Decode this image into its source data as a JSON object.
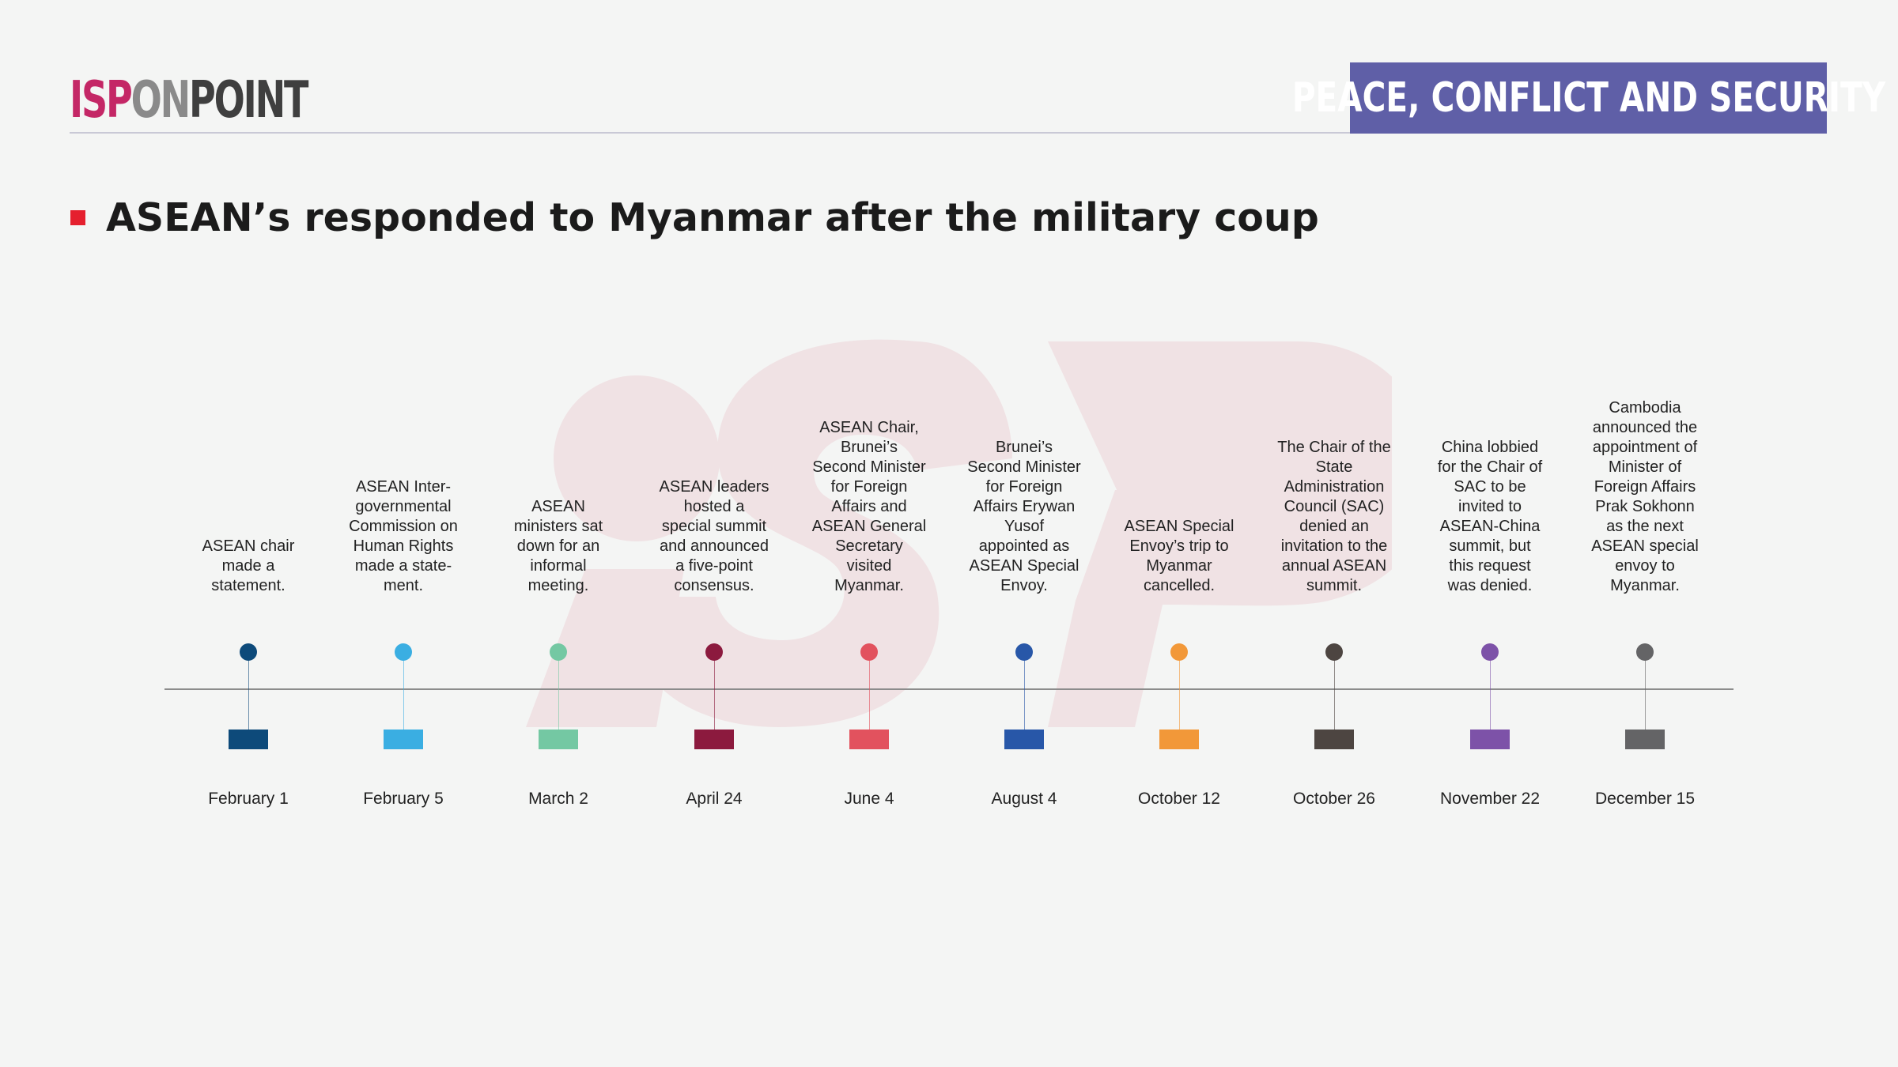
{
  "header": {
    "logo": {
      "part1": "ISP",
      "part2": "ON",
      "part3": "POINT"
    },
    "category": "PEACE, CONFLICT AND SECURITY"
  },
  "title": "ASEAN’s responded to Myanmar after the military coup",
  "colors": {
    "logo_isp": "#c42766",
    "logo_on": "#8a8a8a",
    "logo_point": "#3f3f3f",
    "banner": "#5f5fa7",
    "title_marker": "#e5202e",
    "axis": "#8c8c8c",
    "watermark": "#f0e2e4"
  },
  "events": [
    {
      "date": "February 1",
      "lines": [
        "ASEAN chair",
        "made a",
        "statement."
      ],
      "color": "#0d4a7a"
    },
    {
      "date": "February 5",
      "lines": [
        "ASEAN Inter-",
        "governmental",
        "Commission on",
        "Human Rights",
        "made a state-",
        "ment."
      ],
      "color": "#3aaee2"
    },
    {
      "date": "March 2",
      "lines": [
        "ASEAN",
        "ministers sat",
        "down for an",
        "informal",
        "meeting."
      ],
      "color": "#74c8a3"
    },
    {
      "date": "April 24",
      "lines": [
        "ASEAN leaders",
        "hosted a",
        "special summit",
        "and announced",
        "a five-point",
        "consensus."
      ],
      "color": "#8c1a3e"
    },
    {
      "date": "June 4",
      "lines": [
        "ASEAN Chair,",
        "Brunei’s",
        "Second Minister",
        "for Foreign",
        "Affairs and",
        "ASEAN General",
        "Secretary",
        "visited",
        "Myanmar."
      ],
      "color": "#e2525e"
    },
    {
      "date": "August 4",
      "lines": [
        "Brunei’s",
        "Second Minister",
        "for Foreign",
        "Affairs Erywan",
        "Yusof",
        "appointed as",
        "ASEAN Special",
        "Envoy."
      ],
      "color": "#2857a8"
    },
    {
      "date": "October 12",
      "lines": [
        "ASEAN Special",
        "Envoy’s trip to",
        "Myanmar",
        "cancelled."
      ],
      "color": "#f29839"
    },
    {
      "date": "October 26",
      "lines": [
        "The Chair of the",
        "State",
        "Administration",
        "Council (SAC)",
        "denied an",
        "invitation to the",
        "annual ASEAN",
        "summit."
      ],
      "color": "#4d4541"
    },
    {
      "date": "November 22",
      "lines": [
        "China lobbied",
        "for the Chair of",
        "SAC to be",
        "invited to",
        "ASEAN-China",
        "summit, but",
        "this request",
        "was denied."
      ],
      "color": "#7d52a8"
    },
    {
      "date": "December 15",
      "lines": [
        "Cambodia",
        "announced the",
        "appointment of",
        "Minister of",
        "Foreign Affairs",
        "Prak Sokhonn",
        "as the next",
        "ASEAN special",
        "envoy to",
        "Myanmar."
      ],
      "color": "#646466"
    }
  ]
}
